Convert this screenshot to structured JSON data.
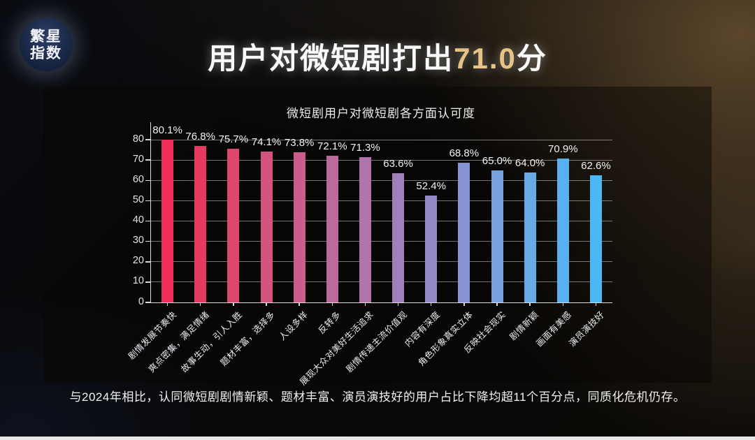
{
  "brand": {
    "logo_line1": "繁星",
    "logo_line2": "指数"
  },
  "header": {
    "title_prefix": "用户对微短剧打出",
    "title_score": "71.0",
    "title_suffix": "分",
    "score_color": "#e6c385"
  },
  "chart_data": {
    "type": "bar",
    "title": "微短剧用户对微短剧各方面认可度",
    "xlabel": "",
    "ylabel": "",
    "unit": "%",
    "ylim": [
      0,
      80
    ],
    "yticks": [
      0,
      10,
      20,
      30,
      40,
      50,
      60,
      70,
      80
    ],
    "grid": true,
    "legend_position": "none",
    "categories": [
      "剧情发展节奏快",
      "爽点密集，满足情绪",
      "故事生动，引人入胜",
      "题材丰富，选择多",
      "人设多样",
      "反转多",
      "展现大众对美好生活追求",
      "剧情传递主流价值观",
      "内容有深度",
      "角色形象真实立体",
      "反映社会现实",
      "剧情新颖",
      "画面有美感",
      "演员演技好"
    ],
    "values": [
      80.1,
      76.8,
      75.7,
      74.1,
      73.8,
      72.1,
      71.3,
      63.6,
      52.4,
      68.8,
      65.0,
      64.0,
      70.9,
      62.6
    ],
    "bar_colors": [
      "#ee2e54",
      "#e63a61",
      "#dd466f",
      "#d3527e",
      "#c95e8d",
      "#bc699c",
      "#af74ac",
      "#a27fbb",
      "#9489c9",
      "#8694d3",
      "#789fde",
      "#68a9e7",
      "#59b0ee",
      "#4bb7f4"
    ]
  },
  "footnote": "与2024年相比，认同微短剧剧情新颖、题材丰富、演员演技好的用户占比下降均超11个百分点，同质化危机仍存。"
}
